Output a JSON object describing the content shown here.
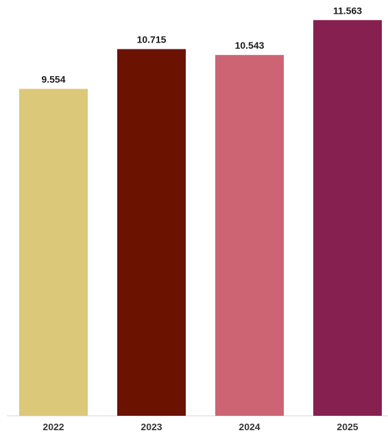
{
  "chart_data": {
    "type": "bar",
    "categories": [
      "2022",
      "2023",
      "2024",
      "2025"
    ],
    "values": [
      9.554,
      10.715,
      10.543,
      11.563
    ],
    "value_labels": [
      "9.554",
      "10.715",
      "10.543",
      "11.563"
    ],
    "colors": [
      "#dbc878",
      "#6b1200",
      "#cd6473",
      "#852051"
    ],
    "title": "",
    "xlabel": "",
    "ylabel": "",
    "ylim": [
      0,
      12.15
    ],
    "grid": false,
    "legend": "none",
    "data_labels": "above-bars"
  }
}
